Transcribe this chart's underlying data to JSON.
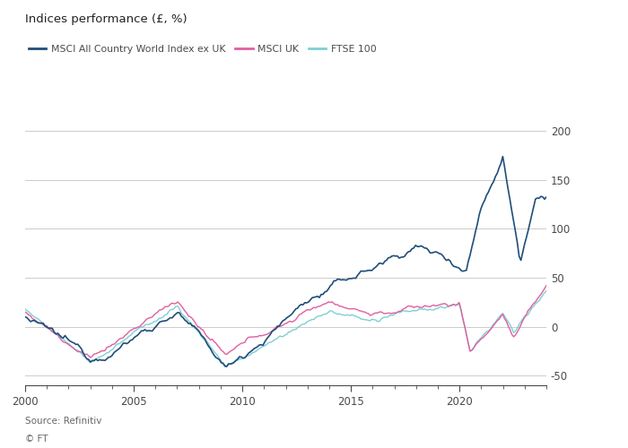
{
  "title": "Indices performance (£, %)",
  "source_line1": "Source: Refinitiv",
  "source_line2": "© FT",
  "series": {
    "msci_world": {
      "label": "MSCI All Country World Index ex UK",
      "color": "#1f4e79"
    },
    "msci_uk": {
      "label": "MSCI UK",
      "color": "#e05fa0"
    },
    "ftse100": {
      "label": "FTSE 100",
      "color": "#7ecfd4"
    }
  },
  "ylim": [
    -60,
    215
  ],
  "yticks": [
    -50,
    0,
    50,
    100,
    150,
    200
  ],
  "xticks": [
    2000,
    2005,
    2010,
    2015,
    2020
  ],
  "xlim": [
    2000,
    2024
  ],
  "background_color": "#ffffff",
  "text_color": "#4a4a4a",
  "grid_color": "#cccccc",
  "title_color": "#222222"
}
